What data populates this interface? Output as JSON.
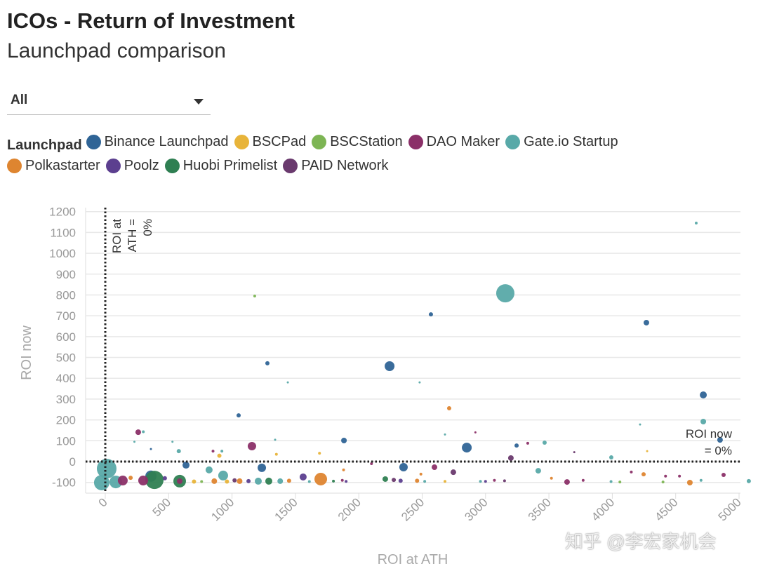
{
  "header": {
    "title": "ICOs - Return of Investment",
    "subtitle": "Launchpad comparison"
  },
  "filter": {
    "selected": "All"
  },
  "legend": {
    "title": "Launchpad",
    "items": [
      {
        "label": "Binance Launchpad",
        "color": "#2f6496"
      },
      {
        "label": "BSCPad",
        "color": "#e8b43a"
      },
      {
        "label": "BSCStation",
        "color": "#7db554"
      },
      {
        "label": "DAO Maker",
        "color": "#8b3068"
      },
      {
        "label": "Gate.io Startup",
        "color": "#58a9a8"
      },
      {
        "label": "Polkastarter",
        "color": "#de8530"
      },
      {
        "label": "Poolz",
        "color": "#5c3f8f"
      },
      {
        "label": "Huobi Primelist",
        "color": "#2f7f52"
      },
      {
        "label": "PAID Network",
        "color": "#6a3a6e"
      }
    ]
  },
  "watermark": "知乎 @李宏家机会",
  "chart_data": {
    "type": "scatter",
    "xlabel": "ROI at ATH",
    "ylabel": "ROI now",
    "xlim": [
      -150,
      5000
    ],
    "ylim": [
      -150,
      1200
    ],
    "xticks": [
      0,
      500,
      1000,
      1500,
      2000,
      2500,
      3000,
      3500,
      4000,
      4500,
      5000
    ],
    "yticks": [
      -100,
      0,
      100,
      200,
      300,
      400,
      500,
      600,
      700,
      800,
      900,
      1000,
      1100,
      1200
    ],
    "grid": true,
    "reference_lines": [
      {
        "axis": "x",
        "value": 0,
        "label": "ROI at ATH = 0%"
      },
      {
        "axis": "y",
        "value": 0,
        "label": "ROI now = 0%"
      }
    ],
    "annotations": {
      "vline": [
        "ROI at",
        "ATH =",
        "0%"
      ],
      "hline": [
        "ROI now",
        "= 0%"
      ]
    },
    "points": [
      {
        "s": "Gate.io Startup",
        "x": 3156,
        "y": 808,
        "size": 13
      },
      {
        "s": "Binance Launchpad",
        "x": 4269,
        "y": 667,
        "size": 4
      },
      {
        "s": "Gate.io Startup",
        "x": 4662,
        "y": 1145,
        "size": 2
      },
      {
        "s": "Binance Launchpad",
        "x": 2243,
        "y": 458,
        "size": 7
      },
      {
        "s": "Binance Launchpad",
        "x": 2569,
        "y": 707,
        "size": 3
      },
      {
        "s": "Binance Launchpad",
        "x": 1279,
        "y": 472,
        "size": 3
      },
      {
        "s": "Binance Launchpad",
        "x": 4718,
        "y": 320,
        "size": 5
      },
      {
        "s": "Gate.io Startup",
        "x": 4718,
        "y": 192,
        "size": 4
      },
      {
        "s": "Binance Launchpad",
        "x": 4850,
        "y": 104,
        "size": 4
      },
      {
        "s": "Binance Launchpad",
        "x": 1052,
        "y": 222,
        "size": 3
      },
      {
        "s": "BSCStation",
        "x": 1179,
        "y": 795,
        "size": 2
      },
      {
        "s": "Gate.io Startup",
        "x": 1440,
        "y": 380,
        "size": 1.5
      },
      {
        "s": "Gate.io Startup",
        "x": 2480,
        "y": 380,
        "size": 1.5
      },
      {
        "s": "Polkastarter",
        "x": 2713,
        "y": 256,
        "size": 3
      },
      {
        "s": "DAO Maker",
        "x": 260,
        "y": 141,
        "size": 4
      },
      {
        "s": "Gate.io Startup",
        "x": 300,
        "y": 143,
        "size": 2
      },
      {
        "s": "DAO Maker",
        "x": 1157,
        "y": 74,
        "size": 6
      },
      {
        "s": "Binance Launchpad",
        "x": 1883,
        "y": 101,
        "size": 4
      },
      {
        "s": "Binance Launchpad",
        "x": 2852,
        "y": 67,
        "size": 7
      },
      {
        "s": "Binance Launchpad",
        "x": 3245,
        "y": 77,
        "size": 3
      },
      {
        "s": "DAO Maker",
        "x": 3333,
        "y": 88,
        "size": 2
      },
      {
        "s": "Gate.io Startup",
        "x": 3466,
        "y": 91,
        "size": 3
      },
      {
        "s": "PAID Network",
        "x": 3200,
        "y": 17,
        "size": 4
      },
      {
        "s": "Gate.io Startup",
        "x": 4219,
        "y": 178,
        "size": 1.5
      },
      {
        "s": "BSCPad",
        "x": 4275,
        "y": 50,
        "size": 1.5
      },
      {
        "s": "Gate.io Startup",
        "x": 3992,
        "y": 20,
        "size": 3
      },
      {
        "s": "DAO Maker",
        "x": 2920,
        "y": 140,
        "size": 1.5
      },
      {
        "s": "Gate.io Startup",
        "x": 2680,
        "y": 130,
        "size": 1.5
      },
      {
        "s": "PAID Network",
        "x": 3700,
        "y": 45,
        "size": 1.5
      },
      {
        "s": "Gate.io Startup",
        "x": 920,
        "y": 50,
        "size": 2
      },
      {
        "s": "BSCPad",
        "x": 900,
        "y": 28,
        "size": 3
      },
      {
        "s": "DAO Maker",
        "x": 850,
        "y": 50,
        "size": 2
      },
      {
        "s": "Gate.io Startup",
        "x": 580,
        "y": 50,
        "size": 3
      },
      {
        "s": "Gate.io Startup",
        "x": 530,
        "y": 95,
        "size": 1.5
      },
      {
        "s": "Gate.io Startup",
        "x": 230,
        "y": 95,
        "size": 1.5
      },
      {
        "s": "Binance Launchpad",
        "x": 360,
        "y": 60,
        "size": 1.5
      },
      {
        "s": "BSCPad",
        "x": 1690,
        "y": 40,
        "size": 2
      },
      {
        "s": "Gate.io Startup",
        "x": 1340,
        "y": 105,
        "size": 1.5
      },
      {
        "s": "BSCPad",
        "x": 1350,
        "y": 35,
        "size": 2
      },
      {
        "s": "Binance Launchpad",
        "x": 1235,
        "y": -30,
        "size": 6
      },
      {
        "s": "Binance Launchpad",
        "x": 2353,
        "y": -27,
        "size": 6
      },
      {
        "s": "Binance Launchpad",
        "x": 637,
        "y": -17,
        "size": 5
      },
      {
        "s": "Gate.io Startup",
        "x": 819,
        "y": -40,
        "size": 5
      },
      {
        "s": "Gate.io Startup",
        "x": 930,
        "y": -67,
        "size": 7
      },
      {
        "s": "Gate.io Startup",
        "x": 11,
        "y": -34,
        "size": 14
      },
      {
        "s": "Gate.io Startup",
        "x": -28,
        "y": -101,
        "size": 11
      },
      {
        "s": "Gate.io Startup",
        "x": 83,
        "y": -98,
        "size": 9
      },
      {
        "s": "Binance Launchpad",
        "x": 360,
        "y": -70,
        "size": 8
      },
      {
        "s": "Huobi Primelist",
        "x": 388,
        "y": -88,
        "size": 13
      },
      {
        "s": "Huobi Primelist",
        "x": 587,
        "y": -94,
        "size": 9
      },
      {
        "s": "DAO Maker",
        "x": 138,
        "y": -91,
        "size": 7
      },
      {
        "s": "DAO Maker",
        "x": 299,
        "y": -91,
        "size": 7
      },
      {
        "s": "DAO Maker",
        "x": 587,
        "y": -94,
        "size": 4
      },
      {
        "s": "Polkastarter",
        "x": 1700,
        "y": -84,
        "size": 9
      },
      {
        "s": "Poolz",
        "x": 1561,
        "y": -74,
        "size": 5
      },
      {
        "s": "Huobi Primelist",
        "x": 1290,
        "y": -94,
        "size": 5
      },
      {
        "s": "Gate.io Startup",
        "x": 1207,
        "y": -94,
        "size": 5
      },
      {
        "s": "Gate.io Startup",
        "x": 1380,
        "y": -94,
        "size": 4
      },
      {
        "s": "DAO Maker",
        "x": 3643,
        "y": -98,
        "size": 4
      },
      {
        "s": "PAID Network",
        "x": 2746,
        "y": -51,
        "size": 4
      },
      {
        "s": "DAO Maker",
        "x": 2597,
        "y": -27,
        "size": 4
      },
      {
        "s": "DAO Maker",
        "x": 2100,
        "y": -10,
        "size": 2
      },
      {
        "s": "Gate.io Startup",
        "x": 3416,
        "y": -44,
        "size": 4
      },
      {
        "s": "Gate.io Startup",
        "x": 5077,
        "y": -94,
        "size": 3
      },
      {
        "s": "Polkastarter",
        "x": 4612,
        "y": -101,
        "size": 4
      },
      {
        "s": "DAO Maker",
        "x": 4878,
        "y": -64,
        "size": 3
      },
      {
        "s": "Polkastarter",
        "x": 4247,
        "y": -61,
        "size": 3
      },
      {
        "s": "DAO Maker",
        "x": 4150,
        "y": -50,
        "size": 2
      },
      {
        "s": "Huobi Primelist",
        "x": 2209,
        "y": -84,
        "size": 4
      },
      {
        "s": "PAID Network",
        "x": 2276,
        "y": -88,
        "size": 3
      },
      {
        "s": "Poolz",
        "x": 2330,
        "y": -92,
        "size": 3
      },
      {
        "s": "Polkastarter",
        "x": 2460,
        "y": -92,
        "size": 3
      },
      {
        "s": "Gate.io Startup",
        "x": 2520,
        "y": -95,
        "size": 2
      },
      {
        "s": "Polkastarter",
        "x": 2490,
        "y": -60,
        "size": 2
      },
      {
        "s": "DAO Maker",
        "x": 1870,
        "y": -90,
        "size": 2
      },
      {
        "s": "Polkastarter",
        "x": 1880,
        "y": -40,
        "size": 2
      },
      {
        "s": "BSCPad",
        "x": 2680,
        "y": -95,
        "size": 2
      },
      {
        "s": "DAO Maker",
        "x": 3070,
        "y": -90,
        "size": 2
      },
      {
        "s": "PAID Network",
        "x": 3150,
        "y": -92,
        "size": 2
      },
      {
        "s": "Polkastarter",
        "x": 3520,
        "y": -80,
        "size": 2
      },
      {
        "s": "DAO Maker",
        "x": 3770,
        "y": -90,
        "size": 2
      },
      {
        "s": "BSCStation",
        "x": 4060,
        "y": -98,
        "size": 2
      },
      {
        "s": "Gate.io Startup",
        "x": 3990,
        "y": -96,
        "size": 2
      },
      {
        "s": "DAO Maker",
        "x": 4420,
        "y": -70,
        "size": 2
      },
      {
        "s": "BSCStation",
        "x": 4400,
        "y": -98,
        "size": 2
      },
      {
        "s": "DAO Maker",
        "x": 4530,
        "y": -70,
        "size": 2
      },
      {
        "s": "Gate.io Startup",
        "x": 4700,
        "y": -90,
        "size": 2
      },
      {
        "s": "Polkastarter",
        "x": 860,
        "y": -94,
        "size": 4
      },
      {
        "s": "Polkastarter",
        "x": 1060,
        "y": -94,
        "size": 4
      },
      {
        "s": "Poolz",
        "x": 1130,
        "y": -94,
        "size": 3
      },
      {
        "s": "BSCPad",
        "x": 960,
        "y": -96,
        "size": 3
      },
      {
        "s": "Polkastarter",
        "x": 1450,
        "y": -92,
        "size": 3
      },
      {
        "s": "PAID Network",
        "x": 1020,
        "y": -90,
        "size": 3
      },
      {
        "s": "BSCStation",
        "x": 760,
        "y": -96,
        "size": 2
      },
      {
        "s": "Poolz",
        "x": 1900,
        "y": -95,
        "size": 2
      },
      {
        "s": "Polkastarter",
        "x": 200,
        "y": -78,
        "size": 3
      },
      {
        "s": "Poolz",
        "x": 470,
        "y": -80,
        "size": 3
      },
      {
        "s": "BSCPad",
        "x": 700,
        "y": -96,
        "size": 3
      },
      {
        "s": "Gate.io Startup",
        "x": 1610,
        "y": -96,
        "size": 2
      },
      {
        "s": "Huobi Primelist",
        "x": 1800,
        "y": -94,
        "size": 2
      },
      {
        "s": "Poolz",
        "x": 3000,
        "y": -95,
        "size": 2
      },
      {
        "s": "Gate.io Startup",
        "x": 2960,
        "y": -95,
        "size": 2
      }
    ]
  }
}
